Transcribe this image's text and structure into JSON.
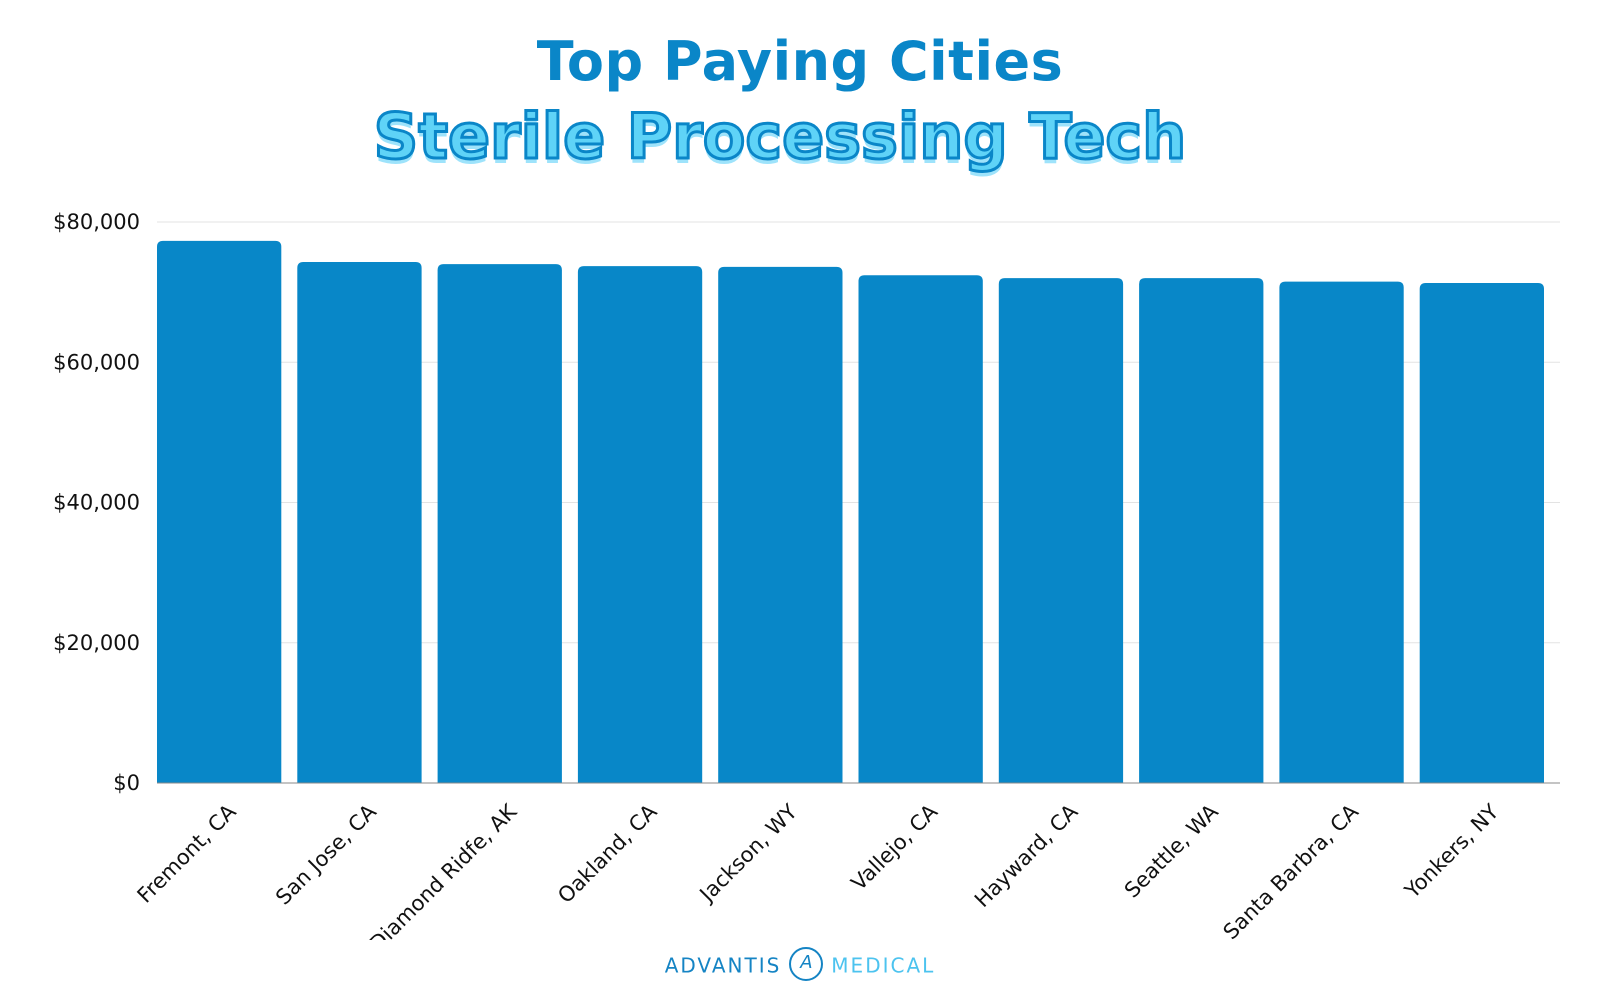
{
  "chart_data": {
    "type": "bar",
    "title": "Top Paying Cities",
    "subtitle": "Sterile Processing Tech",
    "categories": [
      "Fremont, CA",
      "San Jose, CA",
      "Diamond Ridfe, AK",
      "Oakland, CA",
      "Jackson, WY",
      "Vallejo, CA",
      "Hayward, CA",
      "Seattle, WA",
      "Santa Barbra, CA",
      "Yonkers, NY"
    ],
    "values": [
      77300,
      74300,
      74000,
      73700,
      73600,
      72400,
      72000,
      72000,
      71500,
      71300
    ],
    "ylim": [
      0,
      80000
    ],
    "yticks": [
      0,
      20000,
      40000,
      60000,
      80000
    ],
    "ytick_labels": [
      "$0",
      "$20,000",
      "$40,000",
      "$60,000",
      "$80,000"
    ],
    "xlabel": "",
    "ylabel": "",
    "grid": "horizontal",
    "bar_color": "#0887c8",
    "title_color": "#0a86c8",
    "subtitle_color": "#5fd3f7"
  },
  "footer": {
    "brand_left": "ADVANTIS",
    "brand_right": "MEDICAL",
    "logo_icon": "advantis-logo-icon"
  }
}
